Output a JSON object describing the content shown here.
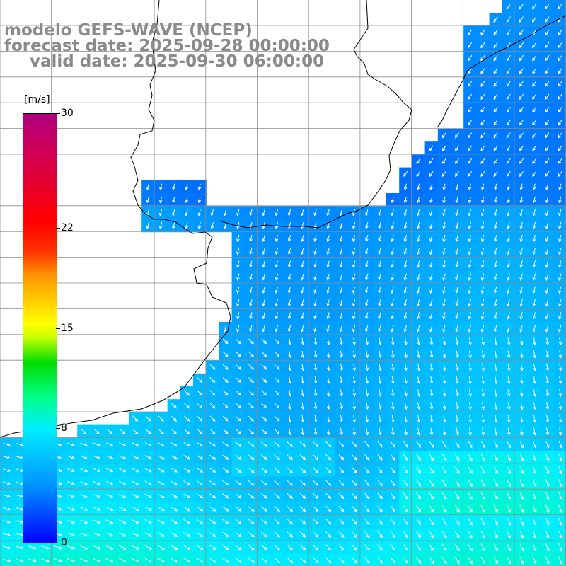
{
  "title": {
    "model": "modelo GEFS-WAVE (NCEP)",
    "forecast": "forecast date: 2025-09-28 00:00:00",
    "valid": "valid date: 2025-09-30 06:00:00"
  },
  "colorbar": {
    "unit": "[m/s]",
    "ticks": [
      {
        "label": "30",
        "value": 30
      },
      {
        "label": "22",
        "value": 22
      },
      {
        "label": "15",
        "value": 15
      },
      {
        "label": "8",
        "value": 8
      },
      {
        "label": "0",
        "value": 0
      }
    ],
    "min": 0,
    "max": 30
  },
  "colors": {
    "land": "#ffffff",
    "grid": "#8c8c8c",
    "coast": "#000000",
    "arrow": "#ffffff",
    "sea_low": "#0000ff",
    "sea_mid": "#0090ff",
    "sea_high": "#00eeff"
  },
  "map": {
    "field": "wind speed and direction",
    "grid_lines": true
  }
}
